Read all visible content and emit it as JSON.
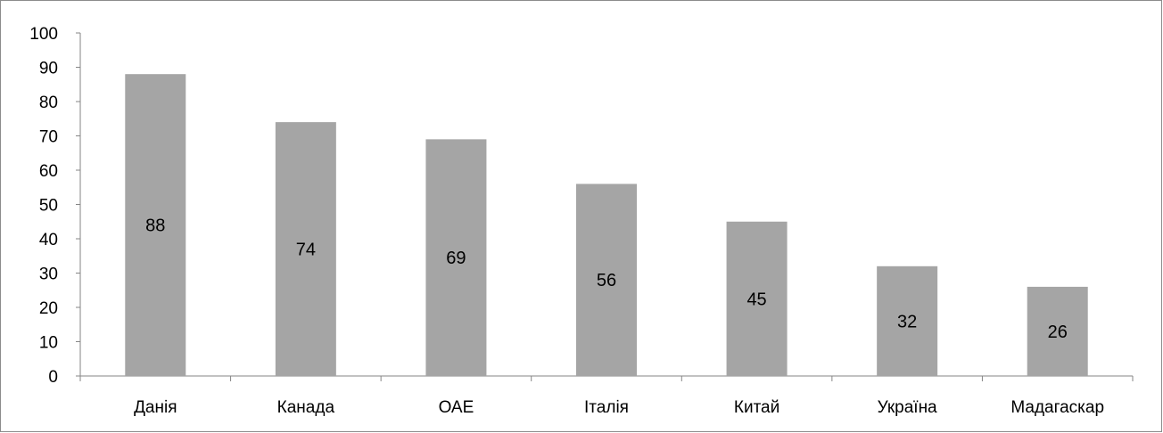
{
  "chart_data": {
    "type": "bar",
    "categories": [
      "Данія",
      "Канада",
      "ОАЕ",
      "Італія",
      "Китай",
      "Україна",
      "Мадагаскар"
    ],
    "values": [
      88,
      74,
      69,
      56,
      45,
      32,
      26
    ],
    "data_labels": [
      "88",
      "74",
      "69",
      "56",
      "45",
      "32",
      "26"
    ],
    "title": "",
    "xlabel": "",
    "ylabel": "",
    "ylim": [
      0,
      100
    ],
    "yticks": [
      0,
      10,
      20,
      30,
      40,
      50,
      60,
      70,
      80,
      90,
      100
    ],
    "ytick_labels": [
      "0",
      "10",
      "20",
      "30",
      "40",
      "50",
      "60",
      "70",
      "80",
      "90",
      "100"
    ],
    "grid": false,
    "legend": "none",
    "bar_color": "#a5a5a5",
    "axis_color": "#868686"
  }
}
